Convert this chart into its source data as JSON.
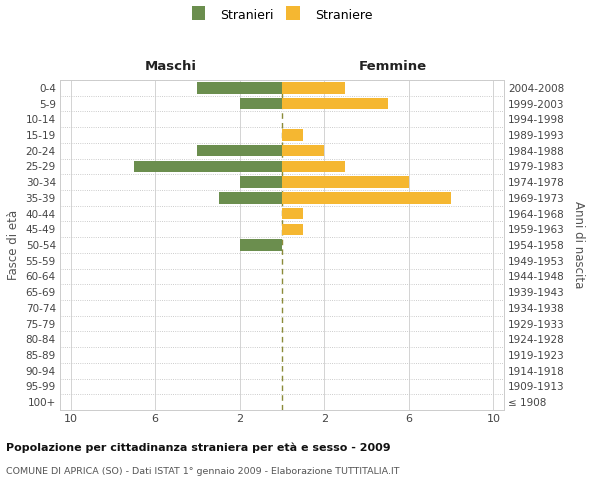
{
  "age_groups": [
    "100+",
    "95-99",
    "90-94",
    "85-89",
    "80-84",
    "75-79",
    "70-74",
    "65-69",
    "60-64",
    "55-59",
    "50-54",
    "45-49",
    "40-44",
    "35-39",
    "30-34",
    "25-29",
    "20-24",
    "15-19",
    "10-14",
    "5-9",
    "0-4"
  ],
  "birth_years": [
    "≤ 1908",
    "1909-1913",
    "1914-1918",
    "1919-1923",
    "1924-1928",
    "1929-1933",
    "1934-1938",
    "1939-1943",
    "1944-1948",
    "1949-1953",
    "1954-1958",
    "1959-1963",
    "1964-1968",
    "1969-1973",
    "1974-1978",
    "1979-1983",
    "1984-1988",
    "1989-1993",
    "1994-1998",
    "1999-2003",
    "2004-2008"
  ],
  "maschi": [
    0,
    0,
    0,
    0,
    0,
    0,
    0,
    0,
    0,
    0,
    2,
    0,
    0,
    3,
    2,
    7,
    4,
    0,
    0,
    2,
    4
  ],
  "femmine": [
    0,
    0,
    0,
    0,
    0,
    0,
    0,
    0,
    0,
    0,
    0,
    1,
    1,
    8,
    6,
    3,
    2,
    1,
    0,
    5,
    3
  ],
  "color_maschi": "#6b8e4e",
  "color_femmine": "#f5b731",
  "xlabel_left": "Maschi",
  "xlabel_right": "Femmine",
  "ylabel_left": "Fasce di età",
  "ylabel_right": "Anni di nascita",
  "legend_stranieri": "Stranieri",
  "legend_straniere": "Straniere",
  "title": "Popolazione per cittadinanza straniera per età e sesso - 2009",
  "subtitle": "COMUNE DI APRICA (SO) - Dati ISTAT 1° gennaio 2009 - Elaborazione TUTTITALIA.IT",
  "center_line_color": "#8b8b3a",
  "grid_color": "#cccccc",
  "grid_color_dotted": "#bbbbbb",
  "bg_color": "#ffffff"
}
